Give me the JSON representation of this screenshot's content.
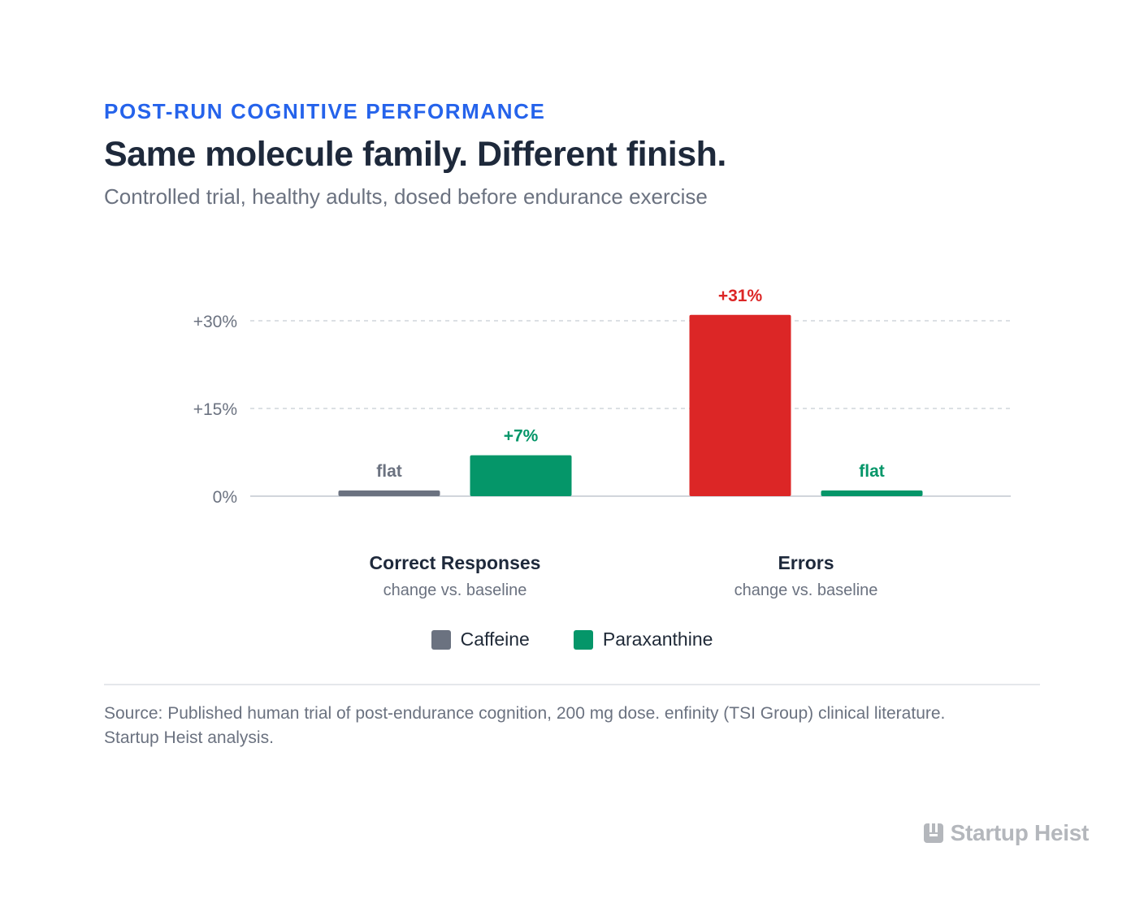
{
  "header": {
    "eyebrow": "POST-RUN COGNITIVE PERFORMANCE",
    "title": "Same molecule family. Different finish.",
    "subtitle": "Controlled trial, healthy adults, dosed before endurance exercise"
  },
  "chart_data": {
    "type": "bar",
    "ylim": [
      0,
      30
    ],
    "ytick_labels": [
      "0%",
      "+15%",
      "+30%"
    ],
    "ytick_values": [
      0,
      15,
      30
    ],
    "grid": true,
    "legend_position": "bottom-center",
    "groups": [
      {
        "label": "Correct Responses",
        "sublabel": "change vs. baseline"
      },
      {
        "label": "Errors",
        "sublabel": "change vs. baseline"
      }
    ],
    "categories": [
      "Correct Responses",
      "Errors"
    ],
    "series": [
      {
        "name": "Caffeine",
        "values": [
          0,
          31
        ],
        "data_labels": [
          "flat",
          "+31%"
        ],
        "bar_colors": [
          "#6b7280",
          "#dc2626"
        ],
        "label_colors": [
          "#6b7280",
          "#dc2626"
        ]
      },
      {
        "name": "Paraxanthine",
        "values": [
          7,
          0
        ],
        "data_labels": [
          "+7%",
          "flat"
        ],
        "bar_colors": [
          "#059669",
          "#059669"
        ],
        "label_colors": [
          "#059669",
          "#059669"
        ]
      }
    ]
  },
  "legend": [
    {
      "label": "Caffeine",
      "color": "#6b7280"
    },
    {
      "label": "Paraxanthine",
      "color": "#059669"
    }
  ],
  "footer": {
    "source": "Source: Published human trial of post-endurance cognition, 200 mg dose. enfinity (TSI Group) clinical literature. Startup Heist analysis."
  },
  "brand": {
    "name": "Startup Heist",
    "icon": "startup-heist-logo-icon"
  }
}
